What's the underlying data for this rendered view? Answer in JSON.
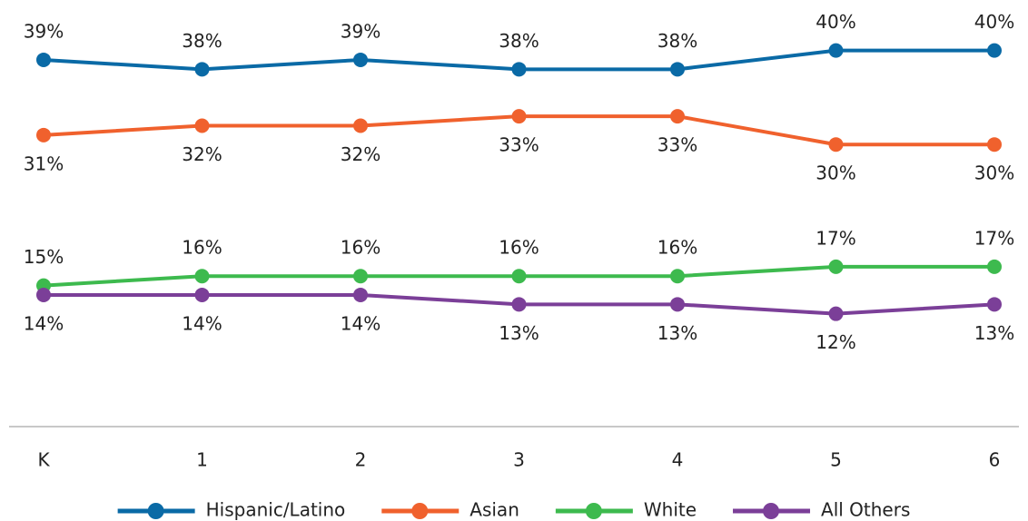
{
  "chart_data": {
    "type": "line",
    "categories": [
      "K",
      "1",
      "2",
      "3",
      "4",
      "5",
      "6"
    ],
    "ylim": [
      0,
      40
    ],
    "legend": "bottom",
    "series": [
      {
        "name": "Hispanic/Latino",
        "color": "#0a6aa6",
        "values": [
          39,
          38,
          39,
          38,
          38,
          40,
          40
        ],
        "value_labels": [
          "39%",
          "38%",
          "39%",
          "38%",
          "38%",
          "40%",
          "40%"
        ]
      },
      {
        "name": "Asian",
        "color": "#f0612d",
        "values": [
          31,
          32,
          32,
          33,
          33,
          30,
          30
        ],
        "value_labels": [
          "31%",
          "32%",
          "32%",
          "33%",
          "33%",
          "30%",
          "30%"
        ]
      },
      {
        "name": "White",
        "color": "#3dba4e",
        "values": [
          15,
          16,
          16,
          16,
          16,
          17,
          17
        ],
        "value_labels": [
          "15%",
          "16%",
          "16%",
          "16%",
          "16%",
          "17%",
          "17%"
        ]
      },
      {
        "name": "All Others",
        "color": "#7b3f98",
        "values": [
          14,
          14,
          14,
          13,
          13,
          12,
          13
        ],
        "value_labels": [
          "14%",
          "14%",
          "14%",
          "13%",
          "13%",
          "12%",
          "13%"
        ]
      }
    ]
  }
}
